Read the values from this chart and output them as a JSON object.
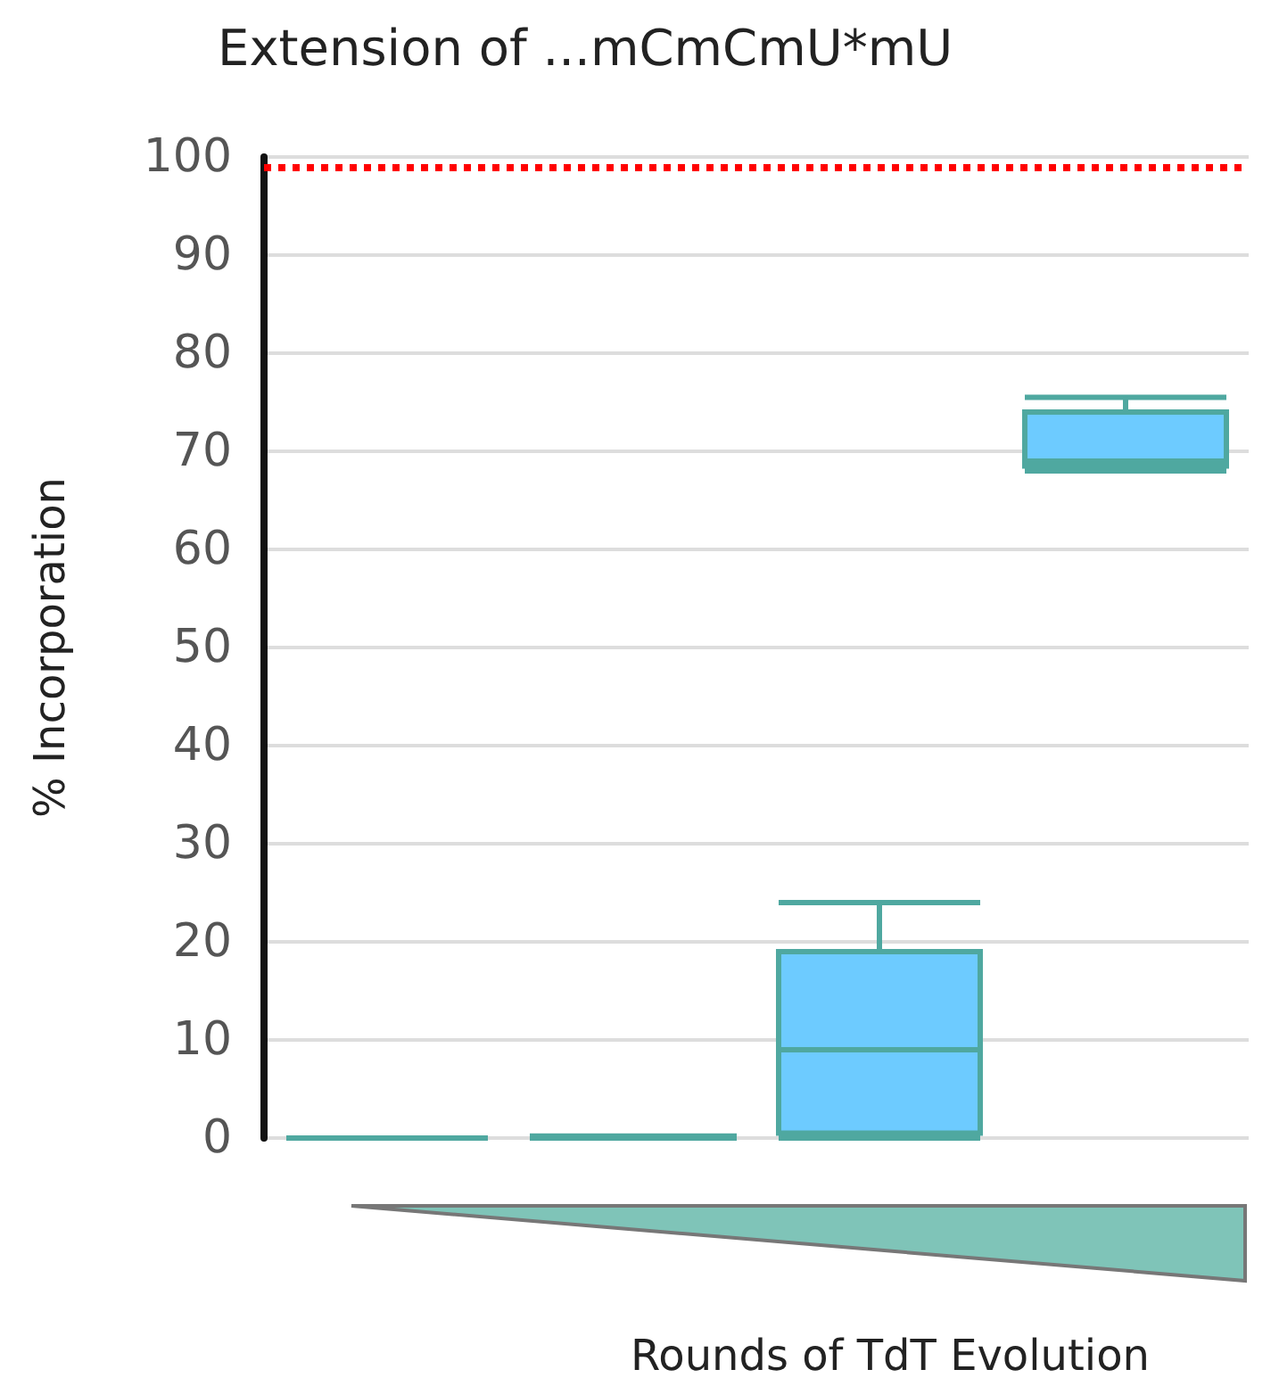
{
  "chart_data": {
    "type": "box",
    "title": "Extension of ...mCmCmU*mU",
    "xlabel": "Rounds of TdT Evolution",
    "ylabel": "% Incorporation",
    "categories": [
      null,
      null,
      null,
      null
    ],
    "boxes": [
      {
        "low": 0,
        "q1": 0,
        "median": 0,
        "q3": 0,
        "high": 0
      },
      {
        "low": 0,
        "q1": 0,
        "median": 0,
        "q3": 0.2,
        "high": 0.2
      },
      {
        "low": 0,
        "q1": 0.5,
        "median": 9,
        "q3": 19,
        "high": 24
      },
      {
        "low": 68,
        "q1": 68.5,
        "median": 69,
        "q3": 74,
        "high": 75.5
      }
    ],
    "colors": [
      "#4fa8a0",
      "#4fa8a0",
      "#6dcbff",
      "#6dcbff"
    ],
    "ylim": [
      0,
      100
    ],
    "yticks": [
      0,
      10,
      20,
      30,
      40,
      50,
      60,
      70,
      80,
      90,
      100
    ],
    "grid": "y",
    "ref_lines": [
      {
        "axis": "y",
        "value": 99,
        "color": "#ff0000",
        "line_style": "dotted"
      }
    ]
  }
}
